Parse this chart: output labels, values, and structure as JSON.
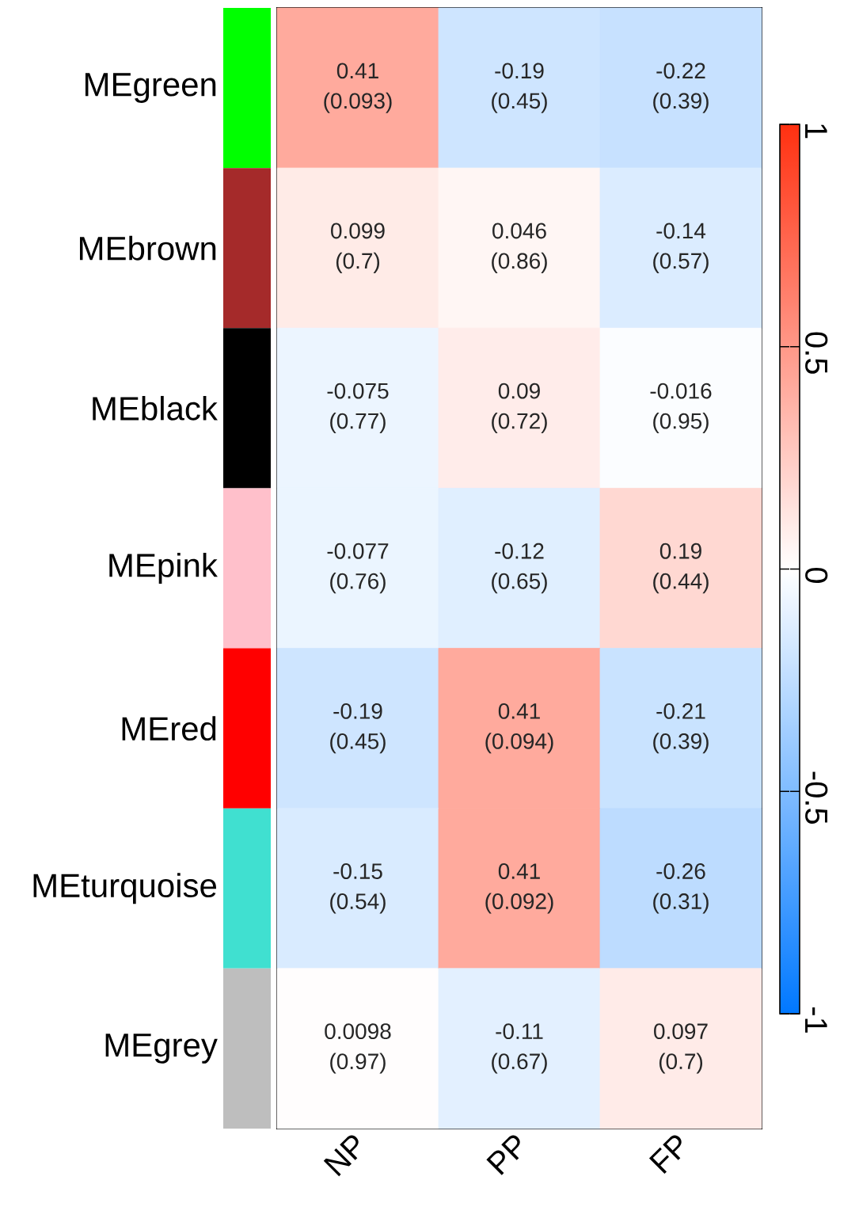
{
  "chart_data": {
    "type": "heatmap",
    "categories": [
      "NP",
      "PP",
      "FP"
    ],
    "y_categories": [
      "MEgreen",
      "MEbrown",
      "MEblack",
      "MEpink",
      "MEred",
      "MEturquoise",
      "MEgrey"
    ],
    "cells": [
      [
        0.41,
        -0.19,
        -0.22
      ],
      [
        0.099,
        0.046,
        -0.14
      ],
      [
        -0.075,
        0.09,
        -0.016
      ],
      [
        -0.077,
        -0.12,
        0.19
      ],
      [
        -0.19,
        0.41,
        -0.21
      ],
      [
        -0.15,
        0.41,
        -0.26
      ],
      [
        0.0098,
        -0.11,
        0.097
      ]
    ],
    "cell_labels": [
      [
        "0.41 (0.093)",
        "-0.19 (0.45)",
        "-0.22 (0.39)"
      ],
      [
        "0.099 (0.7)",
        "0.046 (0.86)",
        "-0.14 (0.57)"
      ],
      [
        "-0.075 (0.77)",
        "0.09 (0.72)",
        "-0.016 (0.95)"
      ],
      [
        "-0.077 (0.76)",
        "-0.12 (0.65)",
        "0.19 (0.44)"
      ],
      [
        "-0.19 (0.45)",
        "0.41 (0.094)",
        "-0.21 (0.39)"
      ],
      [
        "-0.15 (0.54)",
        "0.41 (0.092)",
        "-0.26 (0.31)"
      ],
      [
        "0.0098 (0.97)",
        "-0.11 (0.67)",
        "0.097 (0.7)"
      ]
    ],
    "clim": [
      -1,
      1
    ],
    "cticks": [
      -1,
      -0.5,
      0,
      0.5,
      1
    ]
  }
}
